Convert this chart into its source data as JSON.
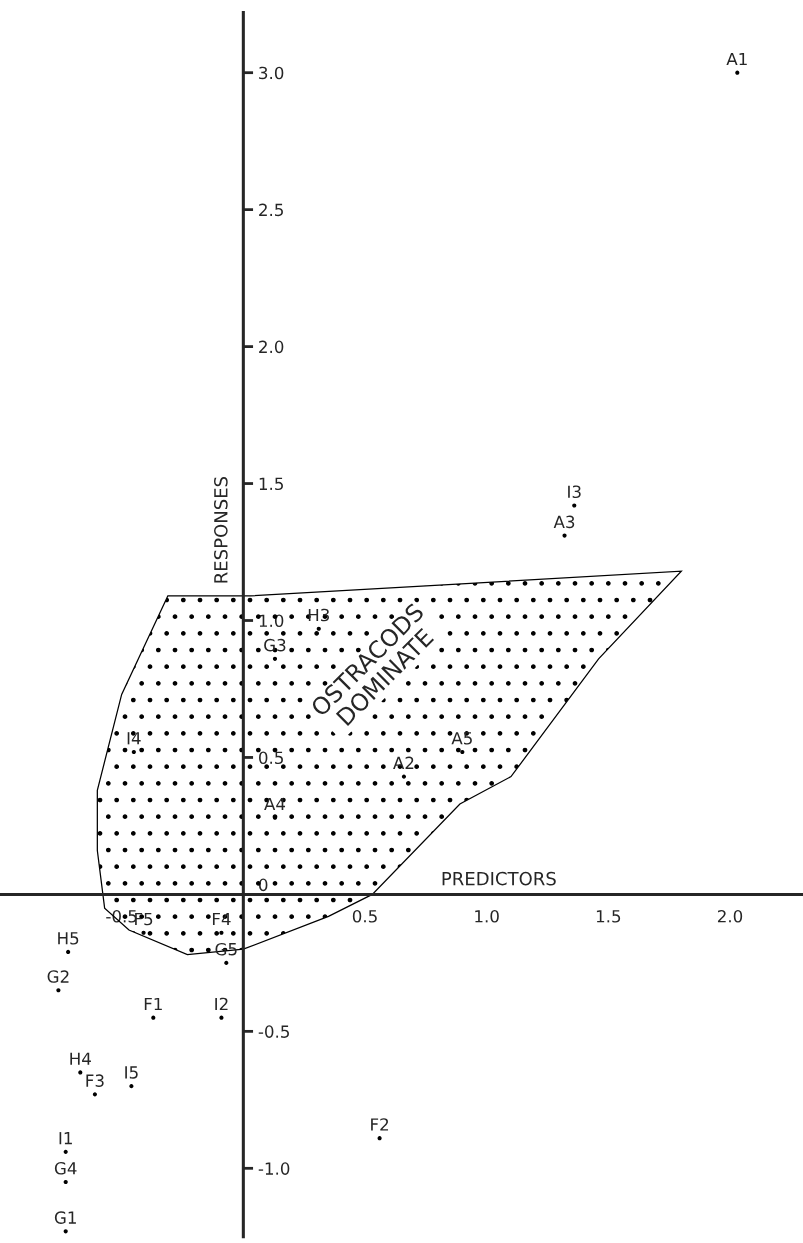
{
  "chart_data": {
    "type": "scatter",
    "xlabel": "PREDICTORS",
    "ylabel": "RESPONSES",
    "xlim": [
      -1.0,
      2.3
    ],
    "ylim": [
      -1.25,
      3.22
    ],
    "xticks": [
      -0.5,
      0.5,
      {
        "value": 1,
        "label": "1.0"
      },
      1.5,
      {
        "value": 2,
        "label": "2.0"
      }
    ],
    "yticks": [
      {
        "value": -1,
        "label": "-1.0"
      },
      -0.5,
      0,
      0.5,
      {
        "value": 1,
        "label": "1.0"
      },
      1.5,
      {
        "value": 2,
        "label": "2.0"
      },
      2.5,
      {
        "value": 3,
        "label": "3.0"
      }
    ],
    "grid": false,
    "series": [
      {
        "color": "#000000",
        "marker": "circle",
        "x": [
          2.03,
          1.36,
          1.32,
          0.31,
          0.13,
          0.9,
          0.66,
          -0.45,
          0.13,
          -0.41,
          -0.09,
          -0.07,
          -0.72,
          -0.76,
          -0.37,
          -0.09,
          -0.67,
          -0.61,
          -0.46,
          -0.73,
          -0.73,
          -0.73,
          0.56
        ],
        "values": [
          3.0,
          1.42,
          1.31,
          0.97,
          0.86,
          0.52,
          0.43,
          0.52,
          0.28,
          -0.14,
          -0.14,
          -0.25,
          -0.21,
          -0.35,
          -0.45,
          -0.45,
          -0.65,
          -0.73,
          -0.7,
          -0.94,
          -1.05,
          -1.23,
          -0.89
        ]
      },
      {
        "type": "area",
        "color": "#000000",
        "x": [
          -0.31,
          -0.5,
          -0.6,
          -0.6,
          -0.57,
          -0.47,
          -0.23,
          0.0,
          0.35,
          0.53,
          0.89,
          1.1,
          1.46,
          1.8,
          0.03,
          -0.31
        ],
        "values": [
          1.09,
          0.73,
          0.38,
          0.16,
          -0.05,
          -0.13,
          -0.22,
          -0.2,
          -0.08,
          0.0,
          0.33,
          0.43,
          0.86,
          1.18,
          1.09,
          1.09
        ]
      }
    ],
    "annotations": [
      {
        "text": "A1",
        "x": 2.03,
        "y": 3.0
      },
      {
        "text": "I3",
        "x": 1.36,
        "y": 1.42
      },
      {
        "text": "A3",
        "x": 1.32,
        "y": 1.31
      },
      {
        "text": "H3",
        "x": 0.31,
        "y": 0.97
      },
      {
        "text": "G3",
        "x": 0.13,
        "y": 0.86
      },
      {
        "text": "A5",
        "x": 0.9,
        "y": 0.52
      },
      {
        "text": "A2",
        "x": 0.66,
        "y": 0.43
      },
      {
        "text": "I4",
        "x": -0.45,
        "y": 0.52
      },
      {
        "text": "A4",
        "x": 0.13,
        "y": 0.28
      },
      {
        "text": "F5",
        "x": -0.41,
        "y": -0.14
      },
      {
        "text": "F4",
        "x": -0.09,
        "y": -0.14
      },
      {
        "text": "G5",
        "x": -0.07,
        "y": -0.25
      },
      {
        "text": "H5",
        "x": -0.72,
        "y": -0.21
      },
      {
        "text": "G2",
        "x": -0.76,
        "y": -0.35
      },
      {
        "text": "F1",
        "x": -0.37,
        "y": -0.45
      },
      {
        "text": "I2",
        "x": -0.09,
        "y": -0.45
      },
      {
        "text": "H4",
        "x": -0.67,
        "y": -0.65
      },
      {
        "text": "F3",
        "x": -0.61,
        "y": -0.73
      },
      {
        "text": "I5",
        "x": -0.46,
        "y": -0.7
      },
      {
        "text": "I1",
        "x": -0.73,
        "y": -0.94
      },
      {
        "text": "G4",
        "x": -0.73,
        "y": -1.05
      },
      {
        "text": "G1",
        "x": -0.73,
        "y": -1.23
      },
      {
        "text": "F2",
        "x": 0.56,
        "y": -0.89
      },
      "OSTRACODS\nDOMINATE"
    ]
  }
}
